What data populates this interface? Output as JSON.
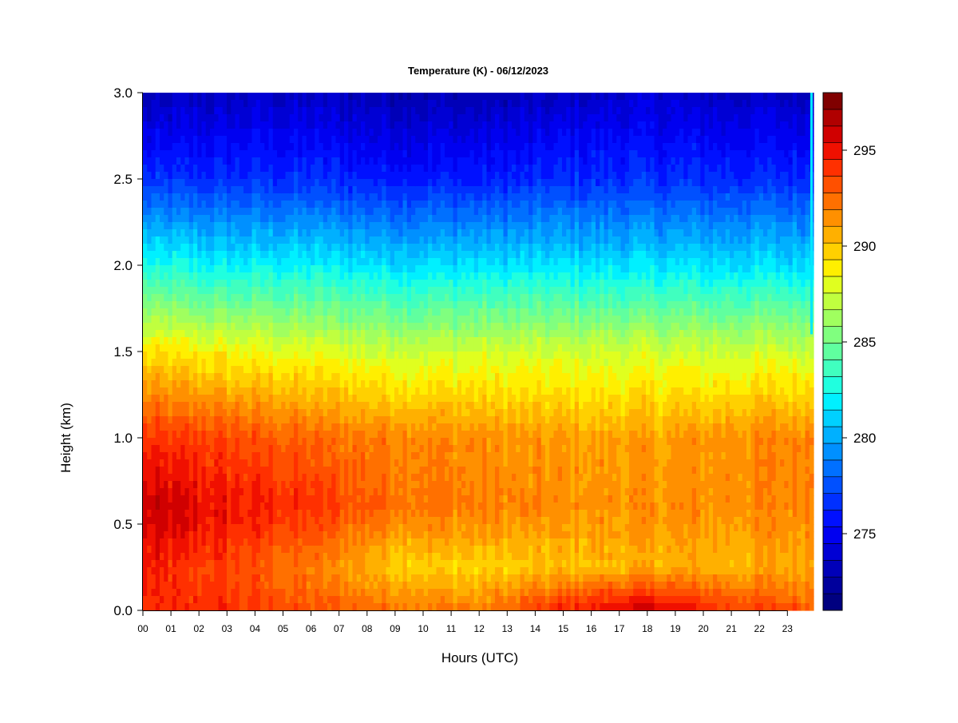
{
  "chart_data": {
    "type": "heatmap",
    "title": "Temperature (K) - 06/12/2023",
    "xlabel": "Hours (UTC)",
    "ylabel": "Height (km)",
    "xlim": [
      0,
      24
    ],
    "ylim": [
      0.0,
      3.0
    ],
    "x_ticks": [
      "00",
      "01",
      "02",
      "03",
      "04",
      "05",
      "06",
      "07",
      "08",
      "09",
      "10",
      "11",
      "12",
      "13",
      "14",
      "15",
      "16",
      "17",
      "18",
      "19",
      "20",
      "21",
      "22",
      "23"
    ],
    "y_ticks": [
      "0.0",
      "0.5",
      "1.0",
      "1.5",
      "2.0",
      "2.5",
      "3.0"
    ],
    "colorbar": {
      "min": 271,
      "max": 298,
      "step": 1,
      "ticks": [
        "275",
        "280",
        "285",
        "290",
        "295"
      ],
      "colors": [
        "#000080",
        "#00009c",
        "#0000b8",
        "#0000d4",
        "#0000f0",
        "#0010ff",
        "#0030ff",
        "#0050ff",
        "#0070ff",
        "#0090ff",
        "#00b0ff",
        "#00d0ff",
        "#00f0ff",
        "#20ffdf",
        "#40ffbf",
        "#60ff9f",
        "#80ff7f",
        "#a0ff5f",
        "#c0ff3f",
        "#e0ff1f",
        "#ffef00",
        "#ffd000",
        "#ffb000",
        "#ff9000",
        "#ff7000",
        "#ff5000",
        "#ff3000",
        "#f01000",
        "#d00000",
        "#b00000",
        "#800000"
      ]
    },
    "grid": false,
    "description_levels": {
      "hours": [
        0,
        3,
        6,
        9,
        12,
        15,
        18,
        21,
        24
      ],
      "surface_K": [
        294.0,
        294.0,
        293.0,
        292.5,
        292.0,
        294.5,
        296.0,
        294.0,
        293.0
      ],
      "h0.25_K": [
        294.5,
        293.5,
        292.0,
        290.0,
        289.5,
        290.0,
        290.5,
        290.5,
        291.0
      ],
      "h0.6_K": [
        296.0,
        295.0,
        294.0,
        292.5,
        292.0,
        291.5,
        291.5,
        291.5,
        292.0
      ],
      "h1.0_K": [
        294.0,
        293.5,
        292.5,
        292.0,
        291.5,
        291.0,
        291.0,
        291.5,
        292.0
      ],
      "h1.5_K": [
        289.0,
        288.5,
        288.0,
        287.5,
        287.5,
        287.5,
        287.5,
        287.5,
        287.5
      ],
      "h2.0_K": [
        282.5,
        282.0,
        282.0,
        281.5,
        281.5,
        281.5,
        281.5,
        281.5,
        281.5
      ],
      "h2.5_K": [
        276.5,
        276.5,
        276.5,
        276.0,
        276.0,
        276.5,
        276.5,
        276.5,
        276.5
      ],
      "h3.0_K": [
        273.0,
        273.5,
        273.5,
        273.0,
        273.0,
        273.5,
        274.0,
        273.5,
        273.5
      ]
    }
  }
}
